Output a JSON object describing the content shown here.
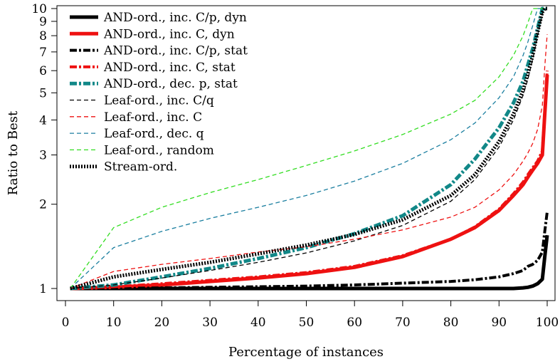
{
  "chart_data": {
    "type": "line",
    "title": "",
    "xlabel": "Percentage of instances",
    "ylabel": "Ratio to Best",
    "xlim": [
      1,
      100
    ],
    "ylim": [
      1,
      10
    ],
    "yscale": "log",
    "grid": false,
    "legend_position": "top-left",
    "x_ticks": [
      0,
      10,
      20,
      30,
      40,
      50,
      60,
      70,
      80,
      90,
      100
    ],
    "y_ticks": [
      1,
      2,
      3,
      4,
      5,
      6,
      7,
      8,
      9,
      10
    ],
    "x_tick_labels": [
      "0",
      "10",
      "20",
      "30",
      "40",
      "50",
      "60",
      "70",
      "80",
      "90",
      "100"
    ],
    "y_tick_labels": [
      "1",
      "2",
      "3",
      "4",
      "5",
      "6",
      "7",
      "8",
      "9",
      "10"
    ],
    "x": [
      1,
      10,
      20,
      30,
      40,
      50,
      60,
      70,
      80,
      85,
      90,
      93,
      95,
      96,
      97,
      98,
      99,
      99.5,
      100
    ],
    "series": [
      {
        "name": "AND-ord., inc. C/p, dyn",
        "color": "#000000",
        "style": "solid",
        "width": 5,
        "values": [
          1.0,
          1.0,
          1.0,
          1.0,
          1.0,
          1.0,
          1.0,
          1.0,
          1.0,
          1.0,
          1.0,
          1.0,
          1.005,
          1.01,
          1.02,
          1.04,
          1.08,
          1.3,
          1.55
        ]
      },
      {
        "name": "AND-ord., inc. C, dyn",
        "color": "#ee1111",
        "style": "solid",
        "width": 5,
        "values": [
          1.0,
          1.01,
          1.03,
          1.06,
          1.09,
          1.13,
          1.19,
          1.3,
          1.5,
          1.65,
          1.9,
          2.15,
          2.35,
          2.5,
          2.65,
          2.8,
          3.0,
          4.2,
          5.8
        ]
      },
      {
        "name": "AND-ord., inc. C/p, stat",
        "color": "#000000",
        "style": "dashdot",
        "width": 4,
        "values": [
          1.0,
          1.0,
          1.005,
          1.01,
          1.015,
          1.02,
          1.03,
          1.045,
          1.06,
          1.075,
          1.1,
          1.13,
          1.16,
          1.2,
          1.22,
          1.26,
          1.35,
          1.6,
          1.88
        ]
      },
      {
        "name": "AND-ord., inc. C, stat",
        "color": "#ee1111",
        "style": "dashdot",
        "width": 4,
        "values": [
          1.0,
          1.015,
          1.04,
          1.07,
          1.1,
          1.14,
          1.2,
          1.31,
          1.5,
          1.66,
          1.92,
          2.18,
          2.4,
          2.55,
          2.7,
          2.85,
          3.1,
          4.3,
          6.0
        ]
      },
      {
        "name": "AND-ord., dec. p, stat",
        "color": "#118888",
        "style": "dashdot",
        "width": 5,
        "values": [
          1.0,
          1.03,
          1.1,
          1.18,
          1.28,
          1.4,
          1.57,
          1.82,
          2.35,
          2.9,
          3.75,
          4.6,
          5.5,
          6.3,
          7.2,
          8.5,
          10.0,
          10.0,
          10.0
        ]
      },
      {
        "name": "Leaf-ord., inc. C/q",
        "color": "#000000",
        "style": "dashed",
        "width": 1.3,
        "values": [
          1.0,
          1.03,
          1.09,
          1.16,
          1.24,
          1.34,
          1.48,
          1.68,
          2.05,
          2.45,
          3.2,
          4.0,
          4.9,
          5.6,
          6.6,
          8.0,
          9.6,
          10.0,
          10.0
        ]
      },
      {
        "name": "Leaf-ord., inc. C",
        "color": "#ee1111",
        "style": "dashed",
        "width": 1.3,
        "values": [
          1.0,
          1.15,
          1.22,
          1.28,
          1.35,
          1.41,
          1.5,
          1.62,
          1.8,
          1.95,
          2.25,
          2.55,
          2.85,
          3.05,
          3.3,
          3.7,
          4.5,
          6.2,
          8.1
        ]
      },
      {
        "name": "Leaf-ord., dec. q",
        "color": "#1b7fa0",
        "style": "dashed",
        "width": 1.3,
        "values": [
          1.0,
          1.4,
          1.6,
          1.78,
          1.95,
          2.15,
          2.42,
          2.8,
          3.4,
          3.9,
          4.8,
          5.7,
          6.8,
          7.6,
          8.7,
          10.0,
          10.0,
          10.0,
          10.0
        ]
      },
      {
        "name": "Leaf-ord., random",
        "color": "#33dd22",
        "style": "dashed",
        "width": 1.3,
        "values": [
          1.0,
          1.65,
          1.95,
          2.2,
          2.45,
          2.75,
          3.1,
          3.55,
          4.2,
          4.7,
          5.7,
          6.8,
          8.0,
          8.9,
          10.0,
          10.0,
          10.0,
          10.0,
          10.0
        ]
      },
      {
        "name": "Stream-ord.",
        "color": "#000000",
        "style": "dotted",
        "width": 5,
        "values": [
          1.0,
          1.1,
          1.17,
          1.24,
          1.33,
          1.43,
          1.56,
          1.76,
          2.15,
          2.55,
          3.35,
          4.2,
          5.1,
          5.85,
          6.8,
          8.2,
          9.7,
          10.0,
          10.0
        ]
      }
    ]
  }
}
